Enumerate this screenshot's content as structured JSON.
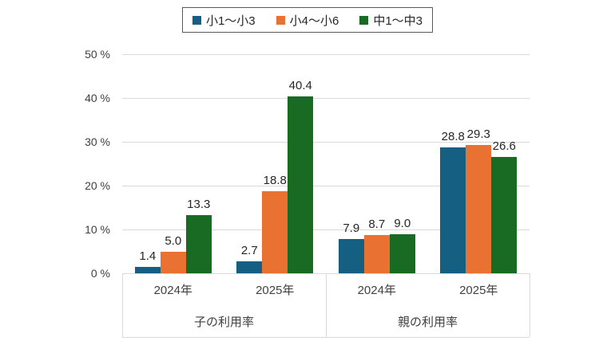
{
  "chart_data": {
    "type": "bar",
    "title": "",
    "xlabel": "",
    "ylabel": "",
    "yticks": [
      0,
      10,
      20,
      30,
      40,
      50
    ],
    "ylim": [
      0,
      50
    ],
    "ytick_suffix": " %",
    "grid": true,
    "legend_position": "top",
    "data_labels": true,
    "group_labels": [
      "子の利用率",
      "親の利用率"
    ],
    "categories": [
      "2024年",
      "2025年",
      "2024年",
      "2025年"
    ],
    "category_groups": [
      {
        "label": "子の利用率",
        "categories": [
          "2024年",
          "2025年"
        ]
      },
      {
        "label": "親の利用率",
        "categories": [
          "2024年",
          "2025年"
        ]
      }
    ],
    "series": [
      {
        "name": "小1〜小3",
        "color": "#156082",
        "values": [
          1.4,
          2.7,
          7.9,
          28.8
        ]
      },
      {
        "name": "小4〜小6",
        "color": "#E97132",
        "values": [
          5.0,
          18.8,
          8.7,
          29.3
        ]
      },
      {
        "name": "中1〜中3",
        "color": "#196B24",
        "values": [
          13.3,
          40.4,
          9.0,
          26.6
        ]
      }
    ],
    "colors": {
      "gridline": "#d9d9d9",
      "axis_text": "#404040",
      "data_label_text": "#262626",
      "legend_border": "#595959"
    }
  }
}
